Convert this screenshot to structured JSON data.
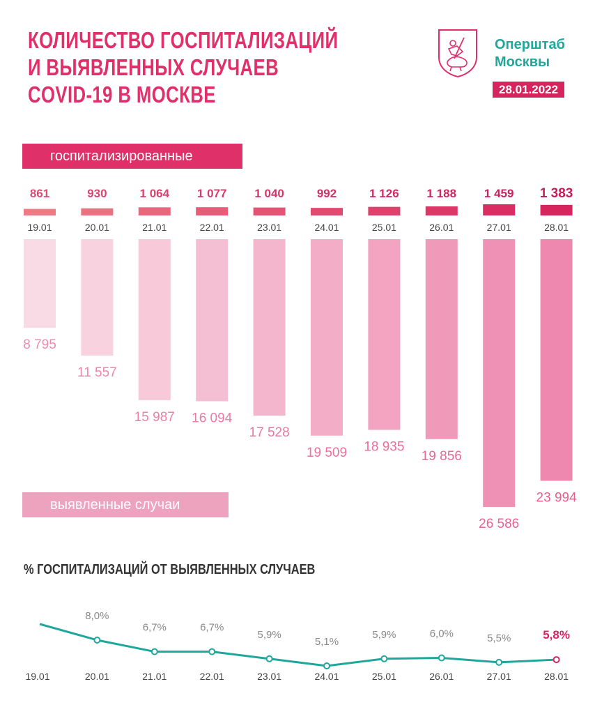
{
  "header": {
    "title_lines": [
      "КОЛИЧЕСТВО ГОСПИТАЛИЗАЦИЙ",
      "И ВЫЯВЛЕННЫХ СЛУЧАЕВ",
      "COVID-19 В МОСКВЕ"
    ],
    "org_lines": [
      "Оперштаб",
      "Москвы"
    ],
    "date": "28.01.2022",
    "logo_icon": "moscow-coat-of-arms-icon"
  },
  "colors": {
    "accent": "#e0306a",
    "date_badge": "#d6245f",
    "teal": "#1ea79b",
    "cases_light": "#f9dbe5",
    "cases_dark": "#ee88ae",
    "hosp_light": "#ee7a84",
    "hosp_dark": "#d6245f"
  },
  "labels": {
    "hospitalized": "госпитализированные",
    "cases": "выявленные случаи",
    "percent_title": "% ГОСПИТАЛИЗАЦИЙ ОТ ВЫЯВЛЕННЫХ СЛУЧАЕВ"
  },
  "chart_data": [
    {
      "type": "bar",
      "categories": [
        "19.01",
        "20.01",
        "21.01",
        "22.01",
        "23.01",
        "24.01",
        "25.01",
        "26.01",
        "27.01",
        "28.01"
      ],
      "series": [
        {
          "name": "госпитализированные",
          "values": [
            861,
            930,
            1064,
            1077,
            1040,
            992,
            1126,
            1188,
            1459,
            1383
          ],
          "labels": [
            "861",
            "930",
            "1 064",
            "1 077",
            "1 040",
            "992",
            "1 126",
            "1 188",
            "1 459",
            "1 383"
          ]
        },
        {
          "name": "выявленные случаи",
          "values": [
            8795,
            11557,
            15987,
            16094,
            17528,
            19509,
            18935,
            19856,
            26586,
            23994
          ],
          "labels": [
            "8 795",
            "11 557",
            "15 987",
            "16 094",
            "17 528",
            "19 509",
            "18 935",
            "19 856",
            "26 586",
            "23 994"
          ]
        }
      ]
    },
    {
      "type": "line",
      "title": "% ГОСПИТАЛИЗАЦИЙ ОТ ВЫЯВЛЕННЫХ СЛУЧАЕВ",
      "categories": [
        "19.01",
        "20.01",
        "21.01",
        "22.01",
        "23.01",
        "24.01",
        "25.01",
        "26.01",
        "27.01",
        "28.01"
      ],
      "values": [
        9.8,
        8.0,
        6.7,
        6.7,
        5.9,
        5.1,
        5.9,
        6.0,
        5.5,
        5.8
      ],
      "labels": [
        "",
        "8,0%",
        "6,7%",
        "6,7%",
        "5,9%",
        "5,1%",
        "5,9%",
        "6,0%",
        "5,5%",
        "5,8%"
      ]
    }
  ]
}
